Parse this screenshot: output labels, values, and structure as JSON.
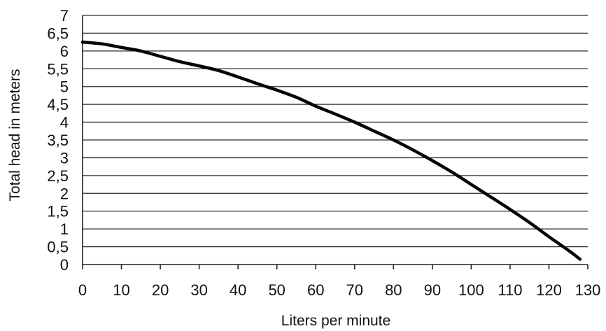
{
  "chart_data": {
    "type": "line",
    "title": "",
    "xlabel": "Liters per minute",
    "ylabel": "Total head in meters",
    "xlim": [
      0,
      130
    ],
    "ylim": [
      0,
      7
    ],
    "grid": true,
    "x_ticks": [
      "0",
      "10",
      "20",
      "30",
      "40",
      "50",
      "60",
      "70",
      "80",
      "90",
      "100",
      "110",
      "120",
      "130"
    ],
    "y_ticks": [
      "0",
      "0,5",
      "1",
      "1,5",
      "2",
      "2,5",
      "3",
      "3,5",
      "4",
      "4,5",
      "5",
      "5,5",
      "6",
      "6,5",
      "7"
    ],
    "series": [
      {
        "x": [
          0,
          5,
          10,
          15,
          20,
          25,
          30,
          35,
          40,
          45,
          50,
          55,
          60,
          65,
          70,
          75,
          80,
          85,
          90,
          95,
          100,
          105,
          110,
          115,
          120,
          125,
          128
        ],
        "y": [
          6.25,
          6.2,
          6.1,
          6.0,
          5.85,
          5.7,
          5.58,
          5.45,
          5.27,
          5.08,
          4.9,
          4.7,
          4.45,
          4.23,
          4.0,
          3.75,
          3.5,
          3.22,
          2.92,
          2.6,
          2.25,
          1.9,
          1.55,
          1.18,
          0.78,
          0.4,
          0.15
        ]
      }
    ]
  }
}
